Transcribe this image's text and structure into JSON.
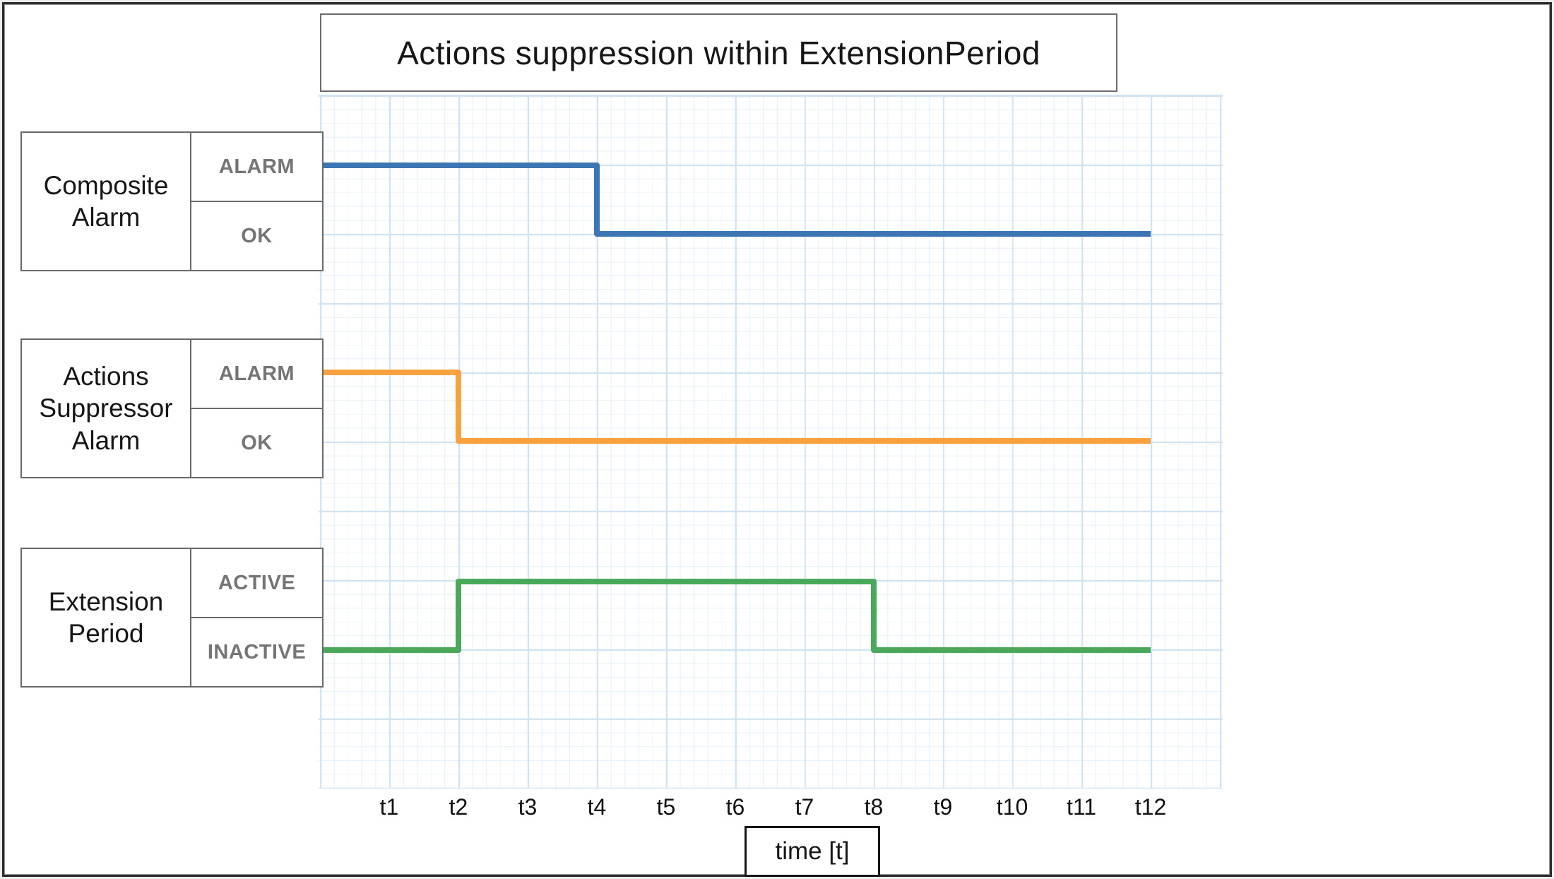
{
  "title": "Actions suppression within ExtensionPeriod",
  "x_axis": {
    "label": "time [t]",
    "ticks": [
      "t1",
      "t2",
      "t3",
      "t4",
      "t5",
      "t6",
      "t7",
      "t8",
      "t9",
      "t10",
      "t11",
      "t12"
    ]
  },
  "colors": {
    "composite_alarm_line": "#3D76B5",
    "suppressor_alarm_line": "#F7A23F",
    "extension_period_line": "#49A85A",
    "grid_major": "#CFE3F2",
    "grid_minor": "#E7F1F9",
    "state_label_text": "#757575",
    "box_border": "#696969",
    "title_text": "#161616"
  },
  "chart_data": {
    "type": "line",
    "subtype": "timing-step-diagram",
    "title": "Actions suppression within ExtensionPeriod",
    "xlabel": "time [t]",
    "x_ticks": [
      "t1",
      "t2",
      "t3",
      "t4",
      "t5",
      "t6",
      "t7",
      "t8",
      "t9",
      "t10",
      "t11",
      "t12"
    ],
    "x_range_ticks": [
      0,
      12
    ],
    "grid": true,
    "legend_position": "left-row-labels",
    "signals": [
      {
        "name": "Composite Alarm",
        "high_label": "ALARM",
        "low_label": "OK",
        "color": "#3D76B5",
        "initial_state": "ALARM",
        "segments": [
          {
            "state": "ALARM",
            "from_tick": 0,
            "to_tick": 4
          },
          {
            "state": "OK",
            "from_tick": 4,
            "to_tick": 12
          }
        ]
      },
      {
        "name": "Actions Suppressor Alarm",
        "high_label": "ALARM",
        "low_label": "OK",
        "color": "#F7A23F",
        "initial_state": "ALARM",
        "segments": [
          {
            "state": "ALARM",
            "from_tick": 0,
            "to_tick": 2
          },
          {
            "state": "OK",
            "from_tick": 2,
            "to_tick": 12
          }
        ]
      },
      {
        "name": "Extension Period",
        "high_label": "ACTIVE",
        "low_label": "INACTIVE",
        "color": "#49A85A",
        "initial_state": "INACTIVE",
        "segments": [
          {
            "state": "INACTIVE",
            "from_tick": 0,
            "to_tick": 2
          },
          {
            "state": "ACTIVE",
            "from_tick": 2,
            "to_tick": 8
          },
          {
            "state": "INACTIVE",
            "from_tick": 8,
            "to_tick": 12
          }
        ]
      }
    ]
  }
}
